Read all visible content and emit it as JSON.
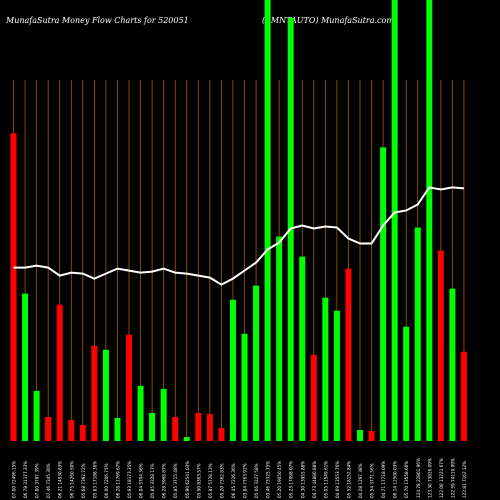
{
  "title": {
    "left": "MunafaSutra  Money Flow  Charts for 520051",
    "right": "(AMNTAUTO) MunafaSutra.com"
  },
  "colors": {
    "up": "#00ff00",
    "down": "#ff0000",
    "grid": "#b86a00",
    "line": "#ffffff",
    "background": "#000000"
  },
  "chart_data": {
    "type": "bar",
    "ylim": [
      0,
      440
    ],
    "bars": [
      {
        "value": 307,
        "color": "red",
        "label": "07.00 72496.15%"
      },
      {
        "value": 147,
        "color": "green",
        "label": "06.78 21177.33%"
      },
      {
        "value": 50,
        "color": "green",
        "label": "07.80 3787.39%"
      },
      {
        "value": 24,
        "color": "red",
        "label": "07.46 7345.30%"
      },
      {
        "value": 136,
        "color": "red",
        "label": "06.21 14530.83%"
      },
      {
        "value": 21,
        "color": "red",
        "label": "06.75 14260.50%"
      },
      {
        "value": 16,
        "color": "red",
        "label": "05.68 7392.72%"
      },
      {
        "value": 95,
        "color": "red",
        "label": "05.83 17188.36%"
      },
      {
        "value": 91,
        "color": "green",
        "label": "06.00 7206.75%"
      },
      {
        "value": 23,
        "color": "green",
        "label": "06.28 11769.67%"
      },
      {
        "value": 106,
        "color": "red",
        "label": "05.93 18173.35%"
      },
      {
        "value": 55,
        "color": "green",
        "label": "06.04 5704.36%"
      },
      {
        "value": 28,
        "color": "green",
        "label": "05.85 3328.17%"
      },
      {
        "value": 52,
        "color": "green",
        "label": "06.28 5968.87%"
      },
      {
        "value": 24,
        "color": "red",
        "label": "05.85 3715.48%"
      },
      {
        "value": 4,
        "color": "green",
        "label": "05.90 62541.03%"
      },
      {
        "value": 28,
        "color": "red",
        "label": "05.90 8363.57%"
      },
      {
        "value": 27,
        "color": "red",
        "label": "05.87 5728.13%"
      },
      {
        "value": 13,
        "color": "red",
        "label": "05.20 7362.83%"
      },
      {
        "value": 141,
        "color": "green",
        "label": "06.45 7226.36%"
      },
      {
        "value": 107,
        "color": "green",
        "label": "03.84 7763.92%"
      },
      {
        "value": 155,
        "color": "green",
        "label": "05.66 3227.58%"
      },
      {
        "value": 440,
        "color": "green",
        "label": "03.46 73325.75%"
      },
      {
        "value": 204,
        "color": "green",
        "label": "05.20 19050.45%"
      },
      {
        "value": 422,
        "color": "green",
        "label": "05.23 17098.07%"
      },
      {
        "value": 184,
        "color": "green",
        "label": "04.30 13955.88%"
      },
      {
        "value": 86,
        "color": "red",
        "label": "04.73 44880.88%"
      },
      {
        "value": 143,
        "color": "green",
        "label": "05.05 11549.61%"
      },
      {
        "value": 130,
        "color": "green",
        "label": "04.69 13553.76%"
      },
      {
        "value": 172,
        "color": "red",
        "label": "05.52 18152.84%"
      },
      {
        "value": 11,
        "color": "green",
        "label": "04.28 1297.38%"
      },
      {
        "value": 10,
        "color": "red",
        "label": "05.54 3771.56%"
      },
      {
        "value": 293,
        "color": "green",
        "label": "04.71 17718.09%"
      },
      {
        "value": 440,
        "color": "green",
        "label": "06.14 12500.03%"
      },
      {
        "value": 114,
        "color": "green",
        "label": "05.70 13558.60%"
      },
      {
        "value": 213,
        "color": "green",
        "label": "124.78 22801.96%"
      },
      {
        "value": 440,
        "color": "green",
        "label": "123.30 73826.09%"
      },
      {
        "value": 190,
        "color": "red",
        "label": "122.00 13221.67%"
      },
      {
        "value": 152,
        "color": "green",
        "label": "122.59 74119.99%"
      },
      {
        "value": 89,
        "color": "red",
        "label": "122.81 7162.12%"
      }
    ],
    "line": [
      173,
      173,
      175,
      173,
      165,
      168,
      167,
      162,
      167,
      172,
      170,
      168,
      169,
      172,
      168,
      167,
      165,
      163,
      156,
      162,
      170,
      178,
      191,
      198,
      212,
      215,
      212,
      214,
      213,
      202,
      197,
      197,
      215,
      228,
      230,
      236,
      253,
      251,
      253,
      252
    ]
  }
}
